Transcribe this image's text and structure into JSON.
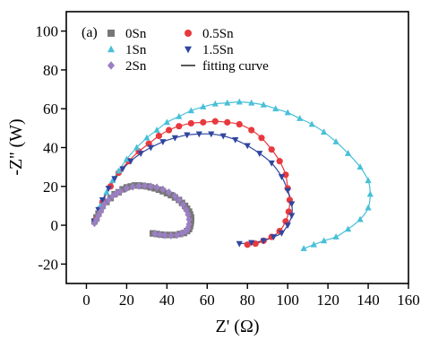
{
  "chart_data": {
    "type": "scatter",
    "panel_label": "(a)",
    "xlabel": "Z' (Ω)",
    "ylabel": "-Z'' (W)",
    "xlim": [
      -10,
      160
    ],
    "ylim": [
      -30,
      110
    ],
    "xticks": [
      0,
      20,
      40,
      60,
      80,
      100,
      120,
      140,
      160
    ],
    "yticks": [
      -20,
      0,
      20,
      40,
      60,
      80,
      100
    ],
    "legend_position": "top-left",
    "fit_label": "fitting curve",
    "series": [
      {
        "name": "0Sn",
        "marker": "square",
        "color": "#777777",
        "points": [
          [
            4,
            2
          ],
          [
            5,
            4
          ],
          [
            6,
            6
          ],
          [
            7,
            8
          ],
          [
            8,
            10
          ],
          [
            10,
            12
          ],
          [
            12,
            14
          ],
          [
            14,
            16
          ],
          [
            16,
            17
          ],
          [
            18,
            18.5
          ],
          [
            20,
            19.5
          ],
          [
            22,
            20
          ],
          [
            24,
            20.5
          ],
          [
            26,
            20.5
          ],
          [
            28,
            20.3
          ],
          [
            30,
            20
          ],
          [
            32,
            19.5
          ],
          [
            34,
            19
          ],
          [
            36,
            18.3
          ],
          [
            38,
            17.5
          ],
          [
            40,
            16.5
          ],
          [
            42,
            15.5
          ],
          [
            44,
            14.3
          ],
          [
            46,
            13
          ],
          [
            47.5,
            11.5
          ],
          [
            49,
            10
          ],
          [
            50,
            8.5
          ],
          [
            51,
            7
          ],
          [
            51.5,
            5.5
          ],
          [
            52,
            4
          ],
          [
            52,
            2.5
          ],
          [
            51.8,
            1
          ],
          [
            51.5,
            -0.5
          ],
          [
            51,
            -2
          ],
          [
            50,
            -3
          ],
          [
            48.5,
            -4
          ],
          [
            46.5,
            -4.5
          ],
          [
            44,
            -5
          ],
          [
            41.5,
            -5
          ],
          [
            39,
            -5
          ],
          [
            37,
            -4.8
          ],
          [
            35,
            -4.5
          ],
          [
            33,
            -4.2
          ]
        ]
      },
      {
        "name": "0.5Sn",
        "marker": "circle",
        "color": "#e8393e",
        "points": [
          [
            5,
            3
          ],
          [
            8,
            12
          ],
          [
            12,
            20
          ],
          [
            16,
            27
          ],
          [
            21,
            33
          ],
          [
            26,
            38
          ],
          [
            31,
            42
          ],
          [
            36,
            46
          ],
          [
            41,
            49
          ],
          [
            46,
            51
          ],
          [
            52,
            52.5
          ],
          [
            58,
            53
          ],
          [
            64,
            53.5
          ],
          [
            70,
            53
          ],
          [
            76,
            52
          ],
          [
            82,
            49
          ],
          [
            87,
            45
          ],
          [
            92,
            39
          ],
          [
            96,
            33
          ],
          [
            99,
            26
          ],
          [
            100,
            19
          ],
          [
            101,
            13
          ],
          [
            100.5,
            7
          ],
          [
            99,
            2
          ],
          [
            96,
            -3
          ],
          [
            92,
            -6
          ],
          [
            88,
            -8
          ],
          [
            84,
            -9.5
          ],
          [
            80,
            -10
          ]
        ]
      },
      {
        "name": "1Sn",
        "marker": "triangle-up",
        "color": "#48c0d8",
        "points": [
          [
            5,
            3
          ],
          [
            7,
            10
          ],
          [
            10,
            17
          ],
          [
            13,
            23
          ],
          [
            16,
            28
          ],
          [
            20,
            34
          ],
          [
            25,
            40
          ],
          [
            30,
            45
          ],
          [
            35,
            49
          ],
          [
            40,
            53
          ],
          [
            46,
            56
          ],
          [
            52,
            59
          ],
          [
            58,
            61
          ],
          [
            64,
            62.5
          ],
          [
            70,
            63
          ],
          [
            76,
            63.5
          ],
          [
            82,
            63
          ],
          [
            88,
            62
          ],
          [
            94,
            60
          ],
          [
            100,
            58
          ],
          [
            106,
            55
          ],
          [
            112,
            52
          ],
          [
            118,
            48
          ],
          [
            124,
            43
          ],
          [
            130,
            37
          ],
          [
            136,
            30
          ],
          [
            140,
            23
          ],
          [
            141,
            16
          ],
          [
            140,
            9
          ],
          [
            136,
            3
          ],
          [
            130,
            -2
          ],
          [
            124,
            -6
          ],
          [
            118,
            -8
          ],
          [
            113,
            -10
          ],
          [
            108,
            -12
          ]
        ]
      },
      {
        "name": "1.5Sn",
        "marker": "triangle-down",
        "color": "#2f46a0",
        "points": [
          [
            4,
            2
          ],
          [
            6,
            8
          ],
          [
            8,
            13
          ],
          [
            11,
            19
          ],
          [
            14,
            24
          ],
          [
            18,
            29
          ],
          [
            22,
            33
          ],
          [
            27,
            37
          ],
          [
            32,
            40
          ],
          [
            38,
            43
          ],
          [
            44,
            45
          ],
          [
            50,
            46.5
          ],
          [
            56,
            47
          ],
          [
            62,
            47
          ],
          [
            68,
            46
          ],
          [
            74,
            44
          ],
          [
            80,
            41
          ],
          [
            86,
            37
          ],
          [
            92,
            32
          ],
          [
            97,
            25
          ],
          [
            100,
            18
          ],
          [
            102,
            11
          ],
          [
            102,
            5
          ],
          [
            100,
            0
          ],
          [
            97,
            -4
          ],
          [
            93,
            -6
          ],
          [
            88,
            -8
          ],
          [
            82,
            -9
          ],
          [
            76,
            -9.5
          ]
        ]
      },
      {
        "name": "2Sn",
        "marker": "diamond",
        "color": "#9a7fc2",
        "points": [
          [
            4,
            1
          ],
          [
            5,
            3
          ],
          [
            6,
            5
          ],
          [
            7,
            7
          ],
          [
            8,
            9
          ],
          [
            9,
            11
          ],
          [
            11,
            13
          ],
          [
            13,
            15
          ],
          [
            15,
            16.5
          ],
          [
            17,
            17.5
          ],
          [
            20,
            19
          ],
          [
            23,
            19.8
          ],
          [
            26,
            20.2
          ],
          [
            29,
            20.3
          ],
          [
            32,
            20
          ],
          [
            35,
            19.5
          ],
          [
            38,
            18.5
          ],
          [
            41,
            17
          ],
          [
            44,
            15
          ],
          [
            46,
            13
          ],
          [
            48,
            10.5
          ],
          [
            49.5,
            8
          ],
          [
            50.5,
            5.5
          ],
          [
            51,
            3
          ],
          [
            51,
            0.5
          ],
          [
            50.5,
            -1.5
          ],
          [
            49.5,
            -3
          ],
          [
            47.5,
            -4.2
          ],
          [
            45,
            -5
          ],
          [
            42,
            -5.3
          ],
          [
            39,
            -5.2
          ],
          [
            36.5,
            -4.8
          ],
          [
            34,
            -4.3
          ]
        ]
      }
    ]
  }
}
